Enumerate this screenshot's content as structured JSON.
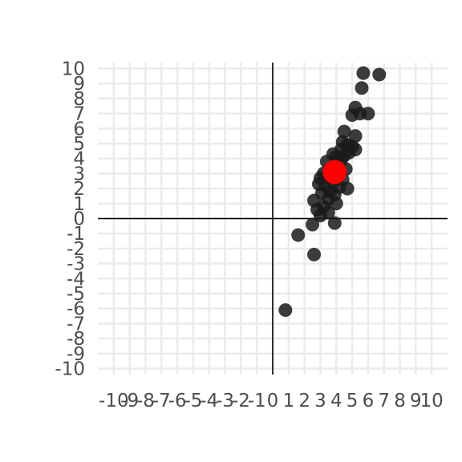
{
  "chart_data": {
    "type": "scatter",
    "title": "",
    "xlabel": "",
    "ylabel": "",
    "xlim": [
      -11,
      11
    ],
    "ylim": [
      -10.4,
      10.4
    ],
    "grid": true,
    "legend": "none",
    "x_ticks": [
      "-10",
      "-9",
      "-8",
      "-7",
      "-6",
      "-5",
      "-4",
      "-3",
      "-2",
      "-1",
      "0",
      "1",
      "2",
      "3",
      "4",
      "5",
      "6",
      "7",
      "8",
      "9",
      "10"
    ],
    "y_ticks": [
      "-10",
      "-9",
      "-8",
      "-7",
      "-6",
      "-5",
      "-4",
      "-3",
      "-2",
      "-1",
      "0",
      "1",
      "2",
      "3",
      "4",
      "5",
      "6",
      "7",
      "8",
      "9",
      "10"
    ],
    "point_color": "#1a1a1a",
    "highlight_color": "#ff0000",
    "series": [
      {
        "points": [
          [
            5.7,
            9.7
          ],
          [
            6.7,
            9.6
          ],
          [
            5.6,
            8.7
          ],
          [
            5.2,
            7.4
          ],
          [
            5.0,
            6.9
          ],
          [
            5.5,
            7.0
          ],
          [
            6.0,
            7.0
          ],
          [
            4.5,
            5.8
          ],
          [
            5.2,
            5.5
          ],
          [
            4.4,
            5.1
          ],
          [
            4.7,
            4.9
          ],
          [
            5.0,
            4.8
          ],
          [
            5.2,
            4.6
          ],
          [
            4.8,
            4.4
          ],
          [
            4.3,
            4.6
          ],
          [
            4.5,
            4.2
          ],
          [
            3.8,
            4.3
          ],
          [
            4.0,
            4.1
          ],
          [
            4.3,
            3.9
          ],
          [
            3.4,
            3.8
          ],
          [
            4.0,
            3.5
          ],
          [
            3.6,
            3.3
          ],
          [
            4.6,
            3.3
          ],
          [
            4.0,
            3.0
          ],
          [
            3.2,
            3.0
          ],
          [
            3.5,
            2.8
          ],
          [
            3.0,
            2.7
          ],
          [
            4.4,
            2.6
          ],
          [
            3.8,
            2.4
          ],
          [
            2.9,
            2.3
          ],
          [
            3.3,
            2.2
          ],
          [
            4.2,
            2.1
          ],
          [
            4.7,
            2.0
          ],
          [
            3.6,
            1.8
          ],
          [
            3.1,
            1.7
          ],
          [
            3.9,
            1.6
          ],
          [
            3.5,
            1.3
          ],
          [
            2.6,
            1.2
          ],
          [
            4.0,
            1.0
          ],
          [
            3.2,
            0.8
          ],
          [
            2.8,
            0.6
          ],
          [
            3.5,
            0.4
          ],
          [
            3.0,
            0.2
          ],
          [
            3.9,
            -0.3
          ],
          [
            2.5,
            -0.4
          ],
          [
            1.6,
            -1.1
          ],
          [
            2.6,
            -2.4
          ],
          [
            0.8,
            -6.1
          ]
        ]
      }
    ],
    "highlight": {
      "x": 3.9,
      "y": 3.1
    }
  }
}
